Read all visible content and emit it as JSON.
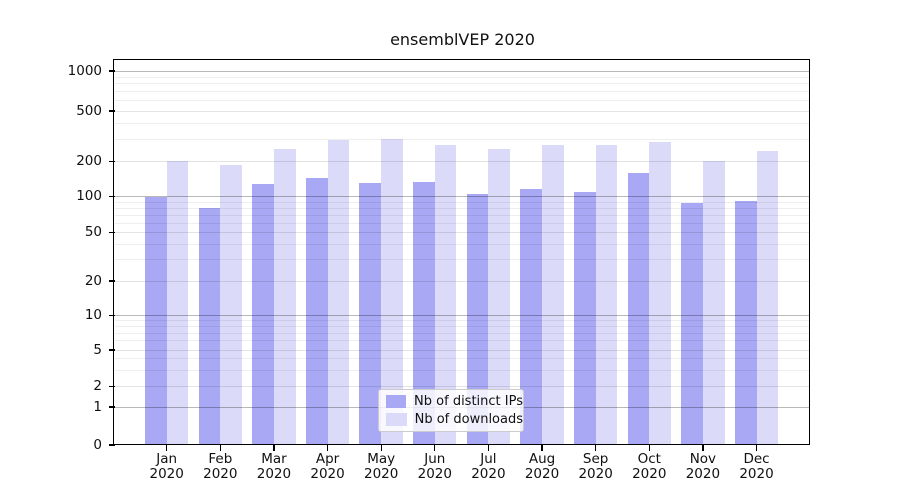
{
  "chart_data": {
    "type": "bar",
    "title": "ensemblVEP 2020",
    "x_months": [
      "Jan",
      "Feb",
      "Mar",
      "Apr",
      "May",
      "Jun",
      "Jul",
      "Aug",
      "Sep",
      "Oct",
      "Nov",
      "Dec"
    ],
    "x_year": "2020",
    "series": [
      {
        "name": "Nb of distinct IPs",
        "color": "#a8a8f5",
        "values": [
          100,
          80,
          128,
          144,
          132,
          135,
          105,
          117,
          110,
          160,
          89,
          92
        ]
      },
      {
        "name": "Nb of downloads",
        "color": "#dbdbf9",
        "values": [
          203,
          186,
          250,
          298,
          302,
          272,
          253,
          270,
          272,
          285,
          203,
          242
        ]
      }
    ],
    "y_ticks": [
      0,
      1,
      2,
      5,
      10,
      20,
      50,
      100,
      200,
      500,
      1000
    ],
    "y_scale": "symlog",
    "ylim": [
      0,
      1000
    ],
    "grid": "horizontal major and minor gridlines",
    "legend_position": "lower center"
  }
}
